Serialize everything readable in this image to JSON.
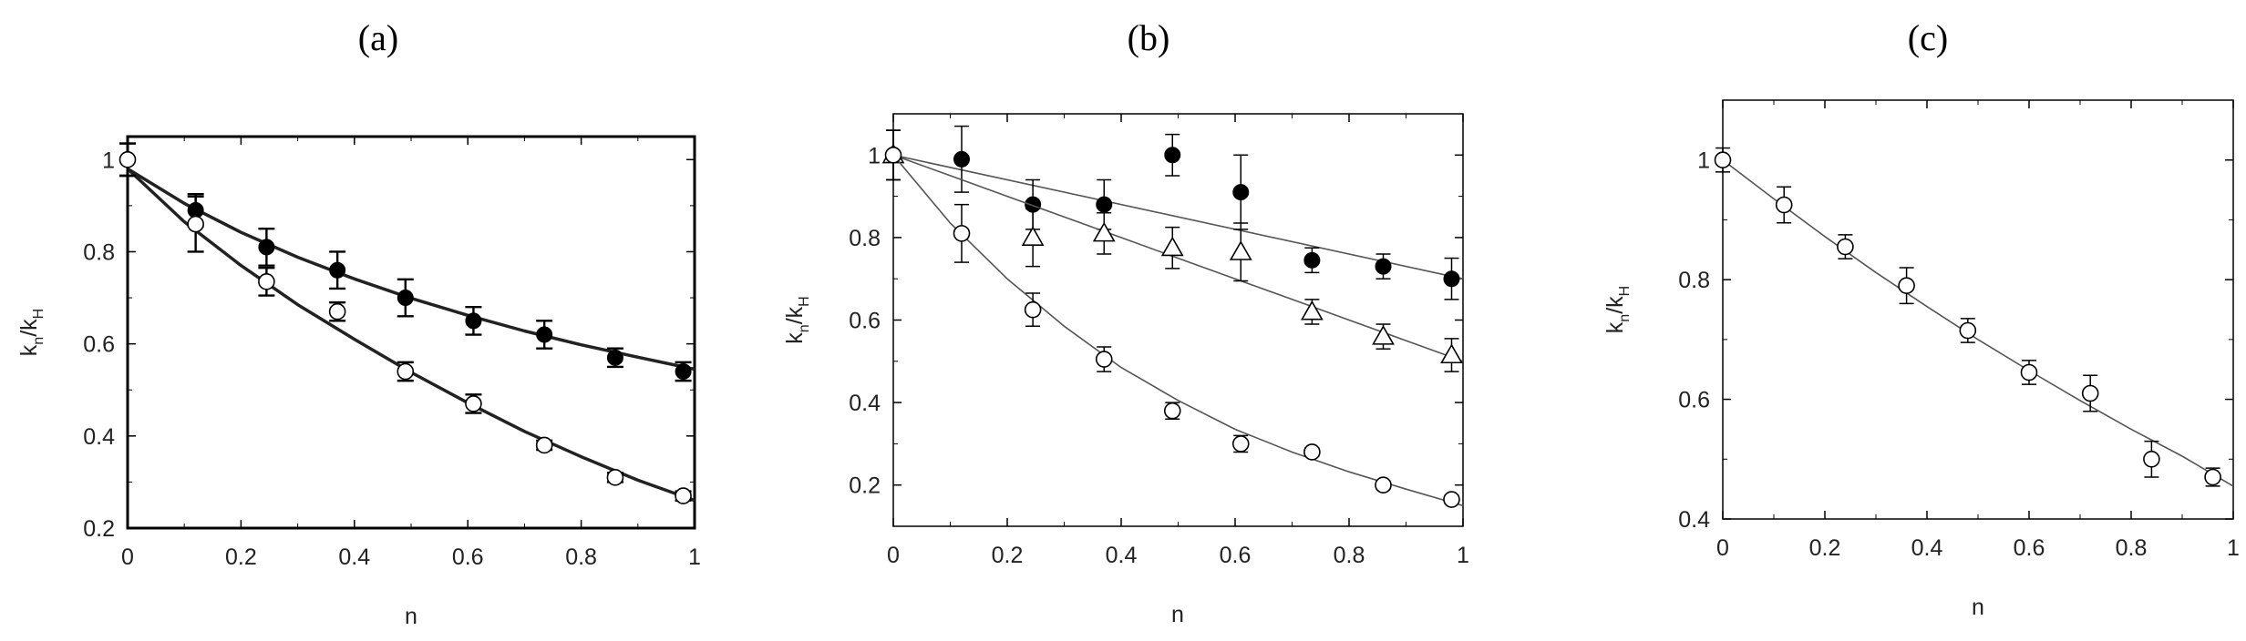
{
  "chart_data": [
    {
      "type": "scatter",
      "panel_label": "(a)",
      "xlabel": "n",
      "ylabel": "k",
      "ylabel_sub1": "n",
      "ylabel_sub2": "H",
      "xlim": [
        0,
        1
      ],
      "ylim": [
        0.2,
        1.05
      ],
      "xticks": [
        0,
        0.2,
        0.4,
        0.6,
        0.8,
        1
      ],
      "xtick_labels": [
        "0",
        "0.2",
        "0.4",
        "0.6",
        "0.8",
        "1"
      ],
      "yticks": [
        0.2,
        0.4,
        0.6,
        0.8,
        1
      ],
      "ytick_labels": [
        "0.2",
        "0.4",
        "0.6",
        "0.8",
        "1"
      ],
      "fit_style": "bold",
      "series": [
        {
          "marker": "filled-circle",
          "x": [
            0,
            0.12,
            0.245,
            0.37,
            0.49,
            0.61,
            0.735,
            0.86,
            0.98
          ],
          "y": [
            1.0,
            0.89,
            0.81,
            0.76,
            0.7,
            0.65,
            0.62,
            0.57,
            0.54
          ],
          "err": [
            0.035,
            0.035,
            0.04,
            0.04,
            0.04,
            0.03,
            0.03,
            0.02,
            0.02
          ],
          "fit": [
            [
              0,
              0.98
            ],
            [
              0.1,
              0.905
            ],
            [
              0.2,
              0.842
            ],
            [
              0.3,
              0.788
            ],
            [
              0.4,
              0.741
            ],
            [
              0.5,
              0.699
            ],
            [
              0.6,
              0.662
            ],
            [
              0.7,
              0.628
            ],
            [
              0.8,
              0.598
            ],
            [
              0.9,
              0.571
            ],
            [
              1.0,
              0.545
            ]
          ]
        },
        {
          "marker": "open-circle",
          "x": [
            0,
            0.12,
            0.245,
            0.37,
            0.49,
            0.61,
            0.735,
            0.86,
            0.98
          ],
          "y": [
            1.0,
            0.86,
            0.735,
            0.67,
            0.54,
            0.47,
            0.38,
            0.31,
            0.27
          ],
          "err": [
            0.035,
            0.06,
            0.03,
            0.02,
            0.02,
            0.02,
            0.01,
            0.01,
            0.01
          ],
          "fit": [
            [
              0,
              0.98
            ],
            [
              0.1,
              0.865
            ],
            [
              0.2,
              0.77
            ],
            [
              0.3,
              0.685
            ],
            [
              0.4,
              0.61
            ],
            [
              0.5,
              0.538
            ],
            [
              0.6,
              0.472
            ],
            [
              0.7,
              0.41
            ],
            [
              0.8,
              0.355
            ],
            [
              0.9,
              0.304
            ],
            [
              1.0,
              0.26
            ]
          ]
        }
      ]
    },
    {
      "type": "scatter",
      "panel_label": "(b)",
      "xlabel": "n",
      "ylabel": "k",
      "ylabel_sub1": "n",
      "ylabel_sub2": "H",
      "xlim": [
        0,
        1
      ],
      "ylim": [
        0.1,
        1.1
      ],
      "xticks": [
        0,
        0.2,
        0.4,
        0.6,
        0.8,
        1
      ],
      "xtick_labels": [
        "0",
        "0.2",
        "0.4",
        "0.6",
        "0.8",
        "1"
      ],
      "yticks": [
        0.2,
        0.4,
        0.6,
        0.8,
        1
      ],
      "ytick_labels": [
        "0.2",
        "0.4",
        "0.6",
        "0.8",
        "1"
      ],
      "fit_style": "thin",
      "series": [
        {
          "marker": "filled-circle",
          "x": [
            0,
            0.12,
            0.245,
            0.37,
            0.49,
            0.61,
            0.735,
            0.86,
            0.98
          ],
          "y": [
            1.0,
            0.99,
            0.88,
            0.88,
            1.0,
            0.91,
            0.745,
            0.73,
            0.7
          ],
          "err": [
            0.06,
            0.08,
            0.06,
            0.06,
            0.05,
            0.09,
            0.03,
            0.03,
            0.05
          ],
          "fit": [
            [
              0,
              1.0
            ],
            [
              1.0,
              0.7
            ]
          ]
        },
        {
          "marker": "open-triangle",
          "x": [
            0,
            0.245,
            0.37,
            0.49,
            0.61,
            0.735,
            0.86,
            0.98
          ],
          "y": [
            1.0,
            0.8,
            0.81,
            0.775,
            0.765,
            0.62,
            0.56,
            0.515
          ],
          "err": [
            0.06,
            0.07,
            0.05,
            0.05,
            0.07,
            0.03,
            0.03,
            0.04
          ],
          "fit": [
            [
              0,
              1.0
            ],
            [
              0.1,
              0.95
            ],
            [
              0.2,
              0.9
            ],
            [
              0.3,
              0.85
            ],
            [
              0.4,
              0.8
            ],
            [
              0.5,
              0.75
            ],
            [
              0.6,
              0.7
            ],
            [
              0.7,
              0.65
            ],
            [
              0.8,
              0.6
            ],
            [
              0.9,
              0.55
            ],
            [
              1.0,
              0.5
            ]
          ]
        },
        {
          "marker": "open-circle",
          "x": [
            0,
            0.12,
            0.245,
            0.37,
            0.49,
            0.61,
            0.735,
            0.86,
            0.98
          ],
          "y": [
            1.0,
            0.81,
            0.625,
            0.505,
            0.38,
            0.3,
            0.28,
            0.2,
            0.165
          ],
          "err": [
            0.06,
            0.07,
            0.04,
            0.03,
            0.02,
            0.02,
            0.01,
            0.01,
            0.01
          ],
          "fit": [
            [
              0,
              1.0
            ],
            [
              0.1,
              0.835
            ],
            [
              0.2,
              0.7
            ],
            [
              0.3,
              0.585
            ],
            [
              0.4,
              0.485
            ],
            [
              0.5,
              0.405
            ],
            [
              0.6,
              0.335
            ],
            [
              0.7,
              0.28
            ],
            [
              0.8,
              0.232
            ],
            [
              0.9,
              0.19
            ],
            [
              1.0,
              0.15
            ]
          ]
        }
      ]
    },
    {
      "type": "scatter",
      "panel_label": "(c)",
      "xlabel": "n",
      "ylabel": "k",
      "ylabel_sub1": "n",
      "ylabel_sub2": "H",
      "xlim": [
        0,
        1
      ],
      "ylim": [
        0.4,
        1.1
      ],
      "xticks": [
        0,
        0.2,
        0.4,
        0.6,
        0.8,
        1
      ],
      "xtick_labels": [
        "0",
        "0.2",
        "0.4",
        "0.6",
        "0.8",
        "1"
      ],
      "yticks": [
        0.4,
        0.6,
        0.8,
        1
      ],
      "ytick_labels": [
        "0.4",
        "0.6",
        "0.8",
        "1"
      ],
      "fit_style": "thin",
      "series": [
        {
          "marker": "open-circle",
          "x": [
            0,
            0.12,
            0.24,
            0.36,
            0.48,
            0.6,
            0.72,
            0.84,
            0.96
          ],
          "y": [
            1.0,
            0.925,
            0.855,
            0.79,
            0.715,
            0.645,
            0.61,
            0.5,
            0.47
          ],
          "err": [
            0.02,
            0.03,
            0.02,
            0.03,
            0.02,
            0.02,
            0.03,
            0.03,
            0.015
          ],
          "fit": [
            [
              0,
              1.0
            ],
            [
              0.1,
              0.935
            ],
            [
              0.2,
              0.872
            ],
            [
              0.3,
              0.812
            ],
            [
              0.4,
              0.755
            ],
            [
              0.5,
              0.7
            ],
            [
              0.6,
              0.648
            ],
            [
              0.7,
              0.598
            ],
            [
              0.8,
              0.55
            ],
            [
              0.9,
              0.505
            ],
            [
              1.0,
              0.455
            ]
          ]
        }
      ]
    }
  ]
}
